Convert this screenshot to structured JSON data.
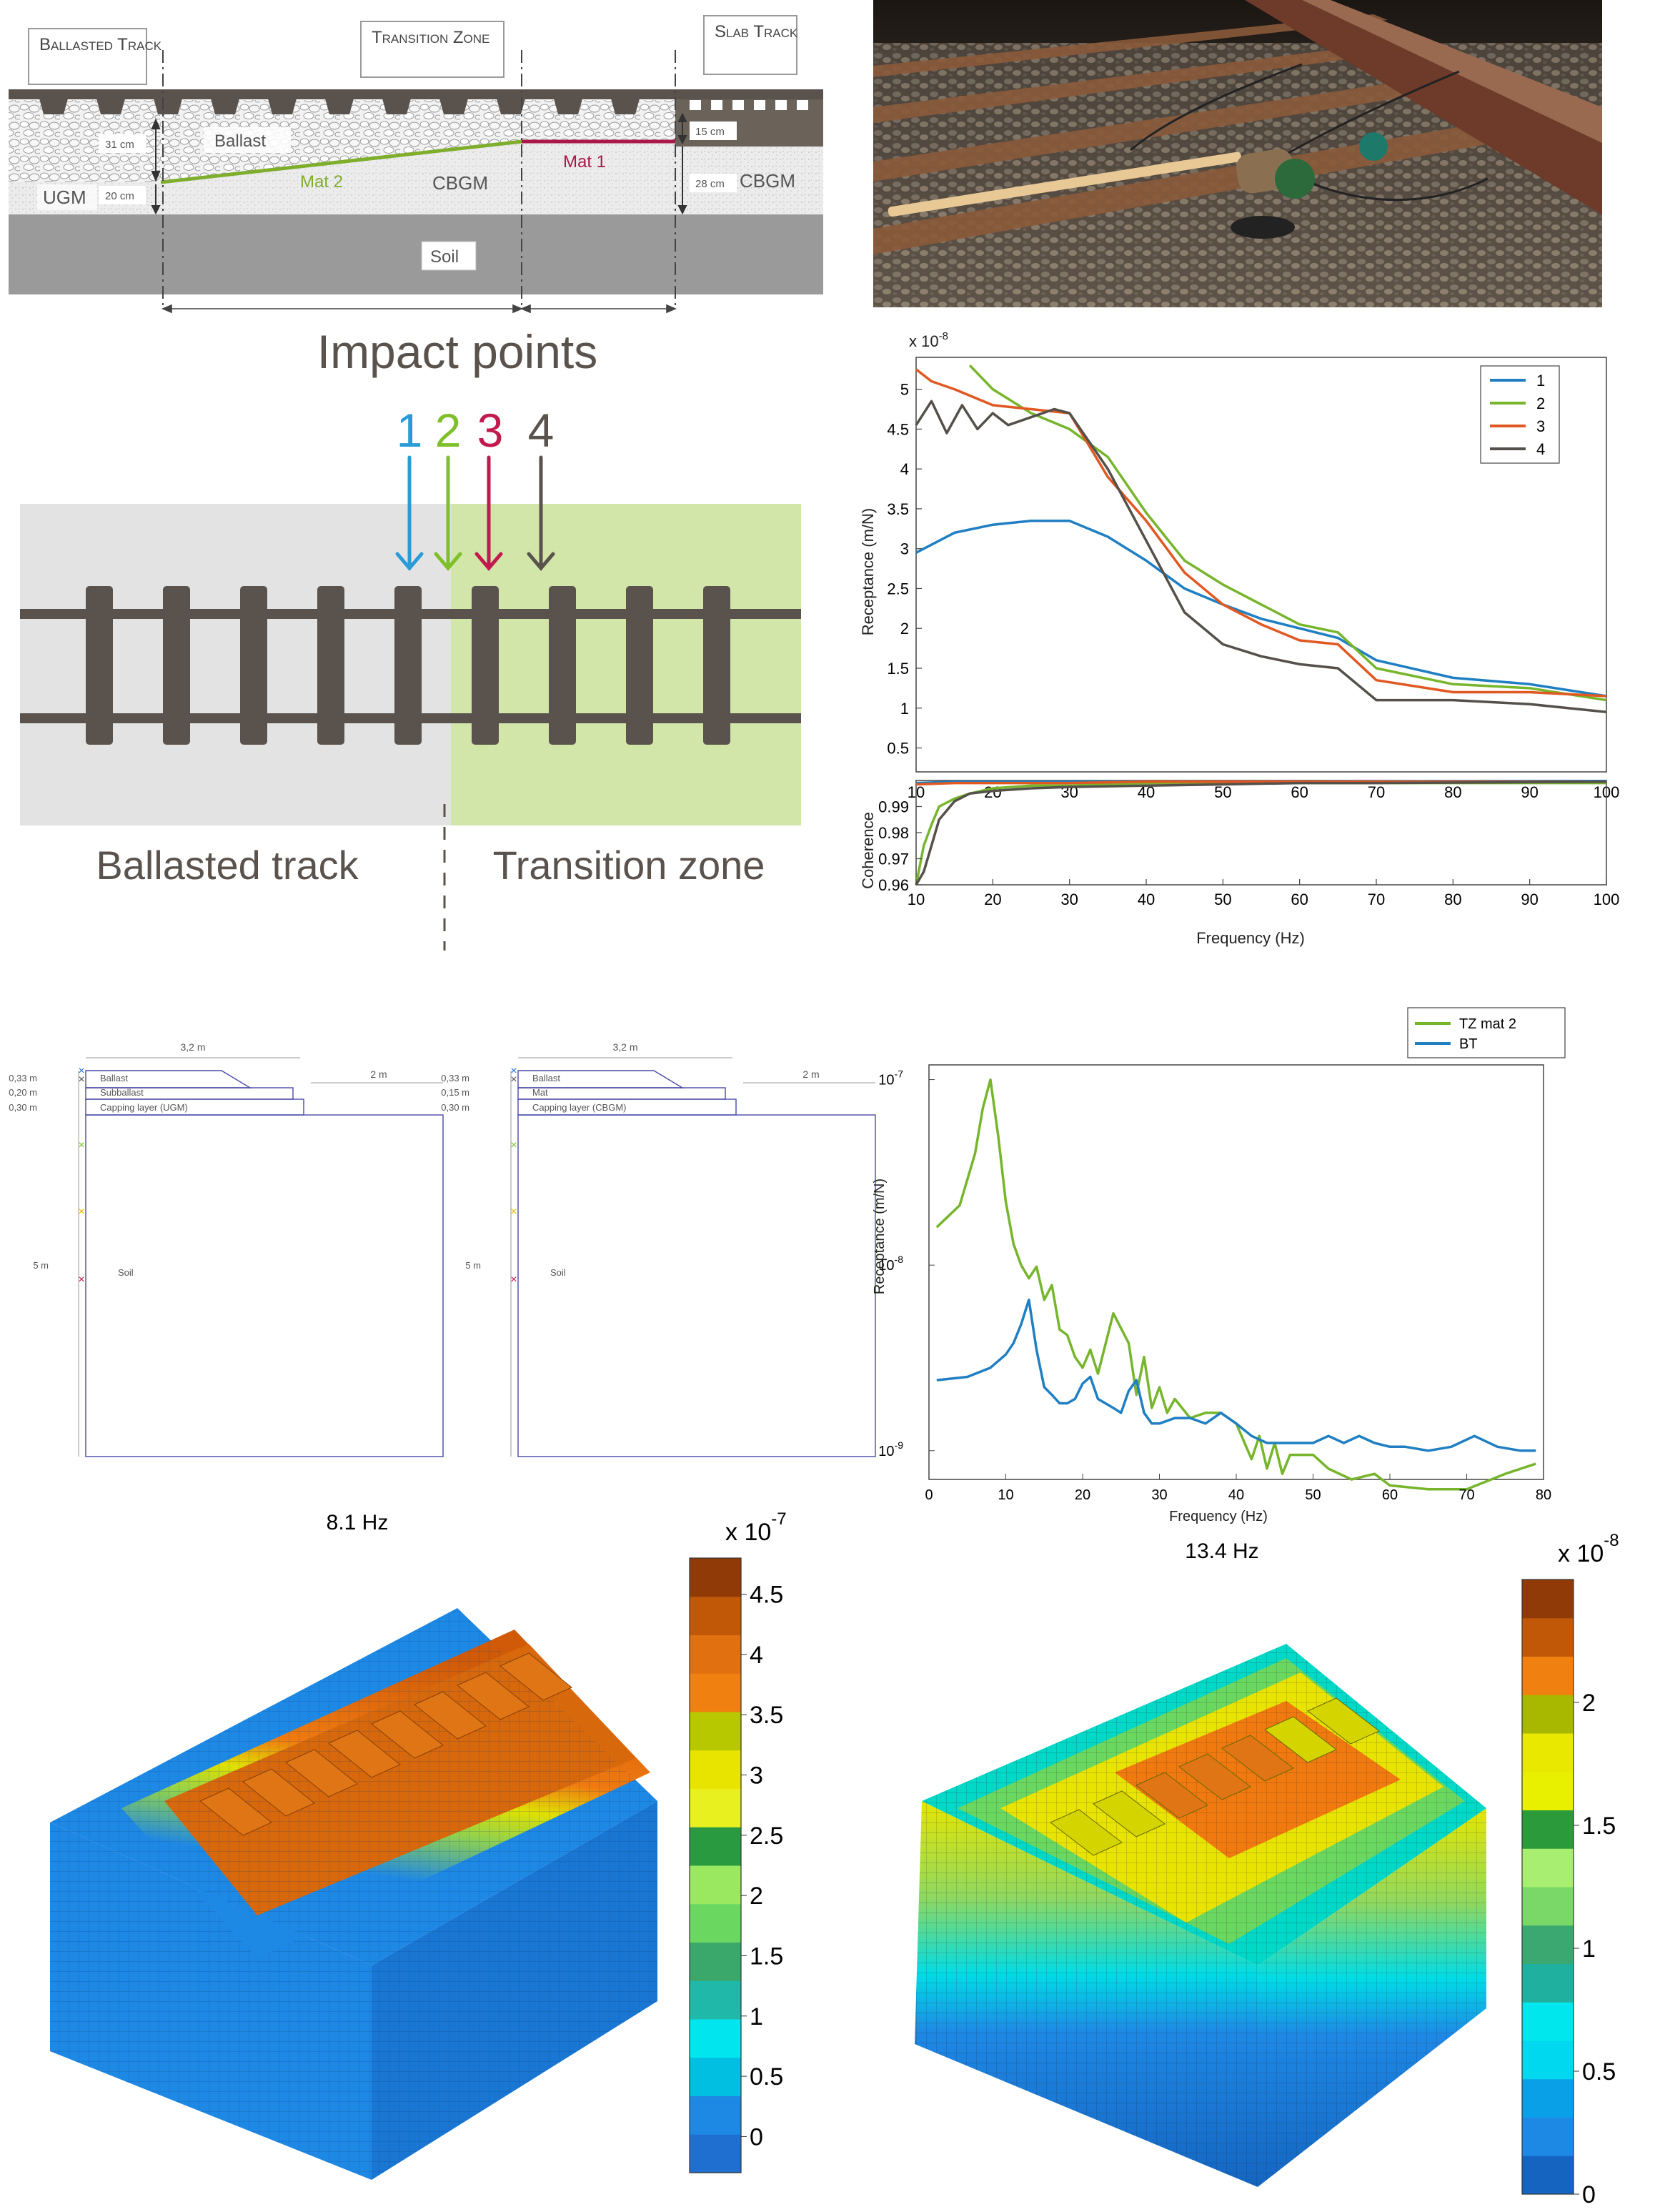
{
  "section_diagram": {
    "labels": {
      "ballasted_track": "Ballasted Track",
      "transition_zone": "Transition Zone",
      "slab_track": "Slab Track",
      "ballast": "Ballast",
      "ugm": "UGM",
      "cbgm_left": "CBGM",
      "cbgm_right": "CBGM",
      "mat2": "Mat 2",
      "mat1": "Mat 1",
      "soil": "Soil"
    },
    "dims": {
      "d31": "31 cm",
      "d20": "20 cm",
      "d15": "15 cm",
      "d28": "28 cm"
    },
    "colors": {
      "mat2": "#7fad2e",
      "mat1": "#a8194a"
    }
  },
  "impact_diagram": {
    "title": "Impact points",
    "points": [
      {
        "label": "1",
        "color": "#2b9bd6"
      },
      {
        "label": "2",
        "color": "#7fbf2a"
      },
      {
        "label": "3",
        "color": "#c01a4e"
      },
      {
        "label": "4",
        "color": "#5a524c"
      }
    ],
    "zone_left": "Ballasted track",
    "zone_right": "Transition zone"
  },
  "model_diagrams": [
    {
      "width_label": "3,2 m",
      "side_label": "2 m",
      "layers": [
        "Ballast",
        "Subballast",
        "Capping layer (UGM)"
      ],
      "thickness": [
        "0,33 m",
        "0,20 m",
        "0,30 m"
      ],
      "depth_label": "5 m",
      "soil_label": "Soil"
    },
    {
      "width_label": "3,2 m",
      "side_label": "2 m",
      "layers": [
        "Ballast",
        "Mat",
        "Capping layer (CBGM)"
      ],
      "thickness": [
        "0,33 m",
        "0,15 m",
        "0,30 m"
      ],
      "depth_label": "5 m",
      "soil_label": "Soil"
    }
  ],
  "chart_data": [
    {
      "type": "line",
      "name": "measured receptance",
      "ylabel": "Receptance (m/N)",
      "multiplier": "x 10",
      "multiplier_exp": "-8",
      "xlim": [
        10,
        100
      ],
      "ylim": [
        0.2,
        5.4
      ],
      "xticks": [
        10,
        20,
        30,
        40,
        50,
        60,
        70,
        80,
        90,
        100
      ],
      "yticks": [
        0.5,
        1,
        1.5,
        2,
        2.5,
        3,
        3.5,
        4,
        4.5,
        5
      ],
      "legend_position": "top-right",
      "series": [
        {
          "name": "1",
          "color": "#1f7fc2",
          "x": [
            10,
            15,
            20,
            25,
            30,
            35,
            40,
            45,
            50,
            55,
            60,
            65,
            70,
            80,
            90,
            100
          ],
          "y": [
            2.95,
            3.2,
            3.3,
            3.35,
            3.35,
            3.15,
            2.85,
            2.5,
            2.3,
            2.12,
            2.0,
            1.88,
            1.6,
            1.38,
            1.3,
            1.15
          ]
        },
        {
          "name": "2",
          "color": "#77b52c",
          "x": [
            17,
            20,
            25,
            30,
            35,
            40,
            45,
            50,
            55,
            60,
            65,
            70,
            80,
            90,
            100
          ],
          "y": [
            5.3,
            5.0,
            4.7,
            4.5,
            4.15,
            3.45,
            2.85,
            2.55,
            2.3,
            2.05,
            1.95,
            1.5,
            1.3,
            1.25,
            1.1
          ]
        },
        {
          "name": "3",
          "color": "#e05822",
          "x": [
            10,
            12,
            15,
            20,
            25,
            30,
            35,
            40,
            45,
            50,
            55,
            60,
            65,
            70,
            80,
            90,
            100
          ],
          "y": [
            5.25,
            5.1,
            5.0,
            4.8,
            4.75,
            4.7,
            3.9,
            3.35,
            2.7,
            2.3,
            2.05,
            1.85,
            1.8,
            1.35,
            1.2,
            1.2,
            1.15
          ]
        },
        {
          "name": "4",
          "color": "#55504a",
          "x": [
            10,
            12,
            14,
            16,
            18,
            20,
            22,
            25,
            28,
            30,
            35,
            40,
            45,
            50,
            55,
            60,
            65,
            70,
            80,
            90,
            100
          ],
          "y": [
            4.55,
            4.85,
            4.45,
            4.8,
            4.5,
            4.7,
            4.55,
            4.65,
            4.75,
            4.7,
            4.0,
            3.1,
            2.2,
            1.8,
            1.65,
            1.55,
            1.5,
            1.1,
            1.1,
            1.05,
            0.95
          ]
        }
      ]
    },
    {
      "type": "line",
      "name": "coherence",
      "xlabel": "Frequency (Hz)",
      "ylabel": "Coherence",
      "xlim": [
        10,
        100
      ],
      "ylim": [
        0.96,
        1.0
      ],
      "xticks": [
        10,
        20,
        30,
        40,
        50,
        60,
        70,
        80,
        90,
        100
      ],
      "yticks": [
        0.96,
        0.97,
        0.98,
        0.99
      ],
      "series": [
        {
          "name": "1",
          "color": "#1f7fc2",
          "x": [
            10,
            15,
            20,
            30,
            40,
            60,
            80,
            100
          ],
          "y": [
            0.999,
            0.9995,
            0.9995,
            0.9995,
            0.9995,
            0.9995,
            0.9997,
            0.9998
          ]
        },
        {
          "name": "2",
          "color": "#77b52c",
          "x": [
            10,
            11,
            12,
            13,
            15,
            17,
            20,
            25,
            30,
            40,
            50,
            60,
            70,
            100
          ],
          "y": [
            0.96,
            0.975,
            0.983,
            0.99,
            0.993,
            0.995,
            0.997,
            0.998,
            0.998,
            0.999,
            0.999,
            0.999,
            0.999,
            0.999
          ]
        },
        {
          "name": "3",
          "color": "#e05822",
          "x": [
            10,
            15,
            20,
            30,
            40,
            60,
            80,
            100
          ],
          "y": [
            0.9985,
            0.999,
            0.999,
            0.999,
            0.9995,
            0.9995,
            0.9995,
            0.9995
          ]
        },
        {
          "name": "4",
          "color": "#55504a",
          "x": [
            10,
            11,
            12,
            13,
            15,
            17,
            20,
            25,
            30,
            40,
            50,
            60,
            70,
            100
          ],
          "y": [
            0.96,
            0.965,
            0.975,
            0.985,
            0.992,
            0.995,
            0.996,
            0.997,
            0.9975,
            0.998,
            0.9985,
            0.999,
            0.999,
            0.9995
          ]
        }
      ]
    },
    {
      "type": "line",
      "name": "simulated receptance",
      "xlabel": "Frequency (Hz)",
      "ylabel": "Receptance (m/N)",
      "scale": "log",
      "xlim": [
        0,
        80
      ],
      "ylim": [
        0.0007,
        0.12
      ],
      "xticks": [
        0,
        10,
        20,
        30,
        40,
        50,
        60,
        70,
        80
      ],
      "ytick_labels": [
        "10",
        "10",
        "10"
      ],
      "ytick_exps": [
        "-7",
        "-8",
        "-9"
      ],
      "ytick_values": [
        0.1,
        0.01,
        0.001
      ],
      "legend_position": "top-right",
      "series": [
        {
          "name": "TZ mat 2",
          "color": "#77b52c",
          "x": [
            1,
            4,
            6,
            7,
            8,
            9,
            10,
            11,
            12,
            13,
            14,
            15,
            16,
            17,
            18,
            19,
            20,
            21,
            22,
            24,
            26,
            27,
            28,
            29,
            30,
            31,
            32,
            34,
            36,
            38,
            40,
            42,
            43,
            44,
            45,
            46,
            47,
            48,
            50,
            52,
            55,
            58,
            60,
            65,
            70,
            75,
            79
          ],
          "y": [
            0.016,
            0.021,
            0.04,
            0.07,
            0.1,
            0.05,
            0.022,
            0.013,
            0.01,
            0.0085,
            0.0098,
            0.0065,
            0.0078,
            0.0045,
            0.0042,
            0.0032,
            0.0028,
            0.0035,
            0.0026,
            0.0055,
            0.0038,
            0.002,
            0.0032,
            0.0017,
            0.0022,
            0.0016,
            0.0019,
            0.0015,
            0.0016,
            0.0016,
            0.0014,
            0.0009,
            0.0012,
            0.0008,
            0.0011,
            0.00075,
            0.00095,
            0.00095,
            0.00095,
            0.0008,
            0.0007,
            0.00075,
            0.00065,
            0.00062,
            0.00062,
            0.00075,
            0.00085
          ]
        },
        {
          "name": "BT",
          "color": "#1f7fc2",
          "x": [
            1,
            5,
            8,
            10,
            11,
            12,
            13,
            14,
            15,
            16,
            17,
            18,
            19,
            20,
            21,
            22,
            24,
            25,
            26,
            27,
            28,
            29,
            30,
            32,
            34,
            36,
            38,
            40,
            42,
            44,
            46,
            48,
            50,
            52,
            54,
            56,
            58,
            60,
            62,
            65,
            68,
            71,
            74,
            77,
            79
          ],
          "y": [
            0.0024,
            0.0025,
            0.0028,
            0.0033,
            0.0038,
            0.0048,
            0.0065,
            0.0035,
            0.0022,
            0.002,
            0.0018,
            0.0018,
            0.0019,
            0.0023,
            0.0025,
            0.0019,
            0.0017,
            0.0016,
            0.0021,
            0.0024,
            0.0016,
            0.0014,
            0.0014,
            0.0015,
            0.0015,
            0.0014,
            0.0016,
            0.0014,
            0.0012,
            0.0011,
            0.0011,
            0.0011,
            0.0011,
            0.0012,
            0.0011,
            0.0012,
            0.0011,
            0.00105,
            0.00105,
            0.001,
            0.00105,
            0.0012,
            0.00105,
            0.001,
            0.001
          ]
        }
      ]
    },
    {
      "type": "heatmap",
      "name": "mode shape 8.1 Hz",
      "title": "8.1 Hz",
      "multiplier": "x 10",
      "multiplier_exp": "-7",
      "colorbar_ticks": [
        "0",
        "0.5",
        "1",
        "1.5",
        "2",
        "2.5",
        "3",
        "3.5",
        "4",
        "4.5"
      ],
      "colorbar_range": [
        -0.3,
        4.8
      ]
    },
    {
      "type": "heatmap",
      "name": "mode shape 13.4 Hz",
      "title": "13.4 Hz",
      "multiplier": "x 10",
      "multiplier_exp": "-8",
      "colorbar_ticks": [
        "0",
        "0.5",
        "1",
        "1.5",
        "2"
      ],
      "colorbar_range": [
        0,
        2.5
      ]
    }
  ],
  "photo": {
    "colors": {
      "sleeper": "#8a5a3a",
      "rail": "#6e3a2a",
      "handle": "#e8c996",
      "hammer": "#2c6a3c"
    }
  }
}
